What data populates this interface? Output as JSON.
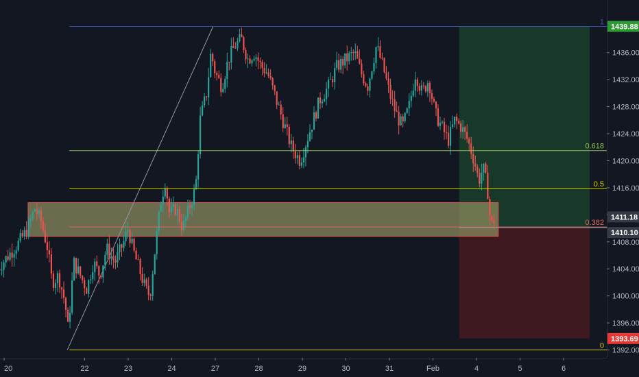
{
  "chart_data": {
    "type": "candlestick",
    "colors": {
      "background": "#131722",
      "up": "#26a69a",
      "down": "#ef5350",
      "axis_text": "#b2b5be",
      "profit_zone": "#1e5631",
      "loss_zone": "#5c1a1e",
      "support_zone": "#8a8a5c"
    },
    "y_axis": {
      "ylim": [
        1391,
        1441.5
      ],
      "ticks": [
        "1392.00",
        "1396.00",
        "1400.00",
        "1404.00",
        "1408.00",
        "1412.00",
        "1416.00",
        "1420.00",
        "1424.00",
        "1428.00",
        "1432.00",
        "1436.00"
      ],
      "tick_values": [
        1392,
        1396,
        1400,
        1404,
        1408,
        1412,
        1416,
        1420,
        1424,
        1428,
        1432,
        1436
      ]
    },
    "x_axis": {
      "labels": [
        {
          "text": "20",
          "x": 0.1
        },
        {
          "text": "22",
          "x": 2
        },
        {
          "text": "23",
          "x": 3
        },
        {
          "text": "24",
          "x": 4
        },
        {
          "text": "27",
          "x": 5
        },
        {
          "text": "28",
          "x": 6
        },
        {
          "text": "29",
          "x": 7
        },
        {
          "text": "30",
          "x": 8
        },
        {
          "text": "31",
          "x": 9
        },
        {
          "text": "Feb",
          "x": 10
        },
        {
          "text": "4",
          "x": 11
        },
        {
          "text": "5",
          "x": 12
        },
        {
          "text": "6",
          "x": 13
        }
      ]
    },
    "fib_levels": [
      {
        "label": "1",
        "value": 1439.88,
        "color": "#3f51b5"
      },
      {
        "label": "0.618",
        "value": 1421.5,
        "color": "#8bc34a"
      },
      {
        "label": "0.5",
        "value": 1415.9,
        "color": "#d4d400"
      },
      {
        "label": "0.382",
        "value": 1410.2,
        "color": "#d96a5a"
      },
      {
        "label": "0",
        "value": 1392.0,
        "color": "#d4d400"
      }
    ],
    "price_tags": [
      {
        "text": "1439.88",
        "value": 1439.88,
        "color": "#2e9a36"
      },
      {
        "text": "1411.18",
        "value": 1411.18,
        "color": "#363a45"
      },
      {
        "text": "1410.10",
        "value": 1410.1,
        "color": "#363a45"
      },
      {
        "text": "1393.69",
        "value": 1393.69,
        "color": "#e53935"
      }
    ],
    "support_zone": {
      "x0": 0.7,
      "x1": 11.5,
      "y_top": 1413.8,
      "y_bottom": 1408.8
    },
    "position": {
      "x0": 10.6,
      "x1": 13.6,
      "entry": 1410.1,
      "target": 1439.88,
      "stop": 1393.69
    },
    "trend_line": {
      "x0": 1.6,
      "y0": 1392.0,
      "x1": 4.95,
      "y1": 1439.88
    },
    "candle_path": [
      [
        0.0,
        1404
      ],
      [
        0.25,
        1406
      ],
      [
        0.5,
        1408
      ],
      [
        0.7,
        1410
      ],
      [
        0.85,
        1413
      ],
      [
        1.0,
        1411
      ],
      [
        1.15,
        1407
      ],
      [
        1.25,
        1402
      ],
      [
        1.4,
        1403
      ],
      [
        1.55,
        1399
      ],
      [
        1.62,
        1395
      ],
      [
        1.75,
        1405
      ],
      [
        1.9,
        1403
      ],
      [
        2.05,
        1401
      ],
      [
        2.2,
        1405
      ],
      [
        2.35,
        1403
      ],
      [
        2.5,
        1407
      ],
      [
        2.7,
        1405
      ],
      [
        2.9,
        1408
      ],
      [
        3.0,
        1410
      ],
      [
        3.1,
        1407
      ],
      [
        3.25,
        1404
      ],
      [
        3.4,
        1401
      ],
      [
        3.5,
        1400
      ],
      [
        3.6,
        1406
      ],
      [
        3.75,
        1414
      ],
      [
        3.85,
        1417
      ],
      [
        3.95,
        1412
      ],
      [
        4.1,
        1413
      ],
      [
        4.25,
        1410
      ],
      [
        4.4,
        1413
      ],
      [
        4.55,
        1416
      ],
      [
        4.65,
        1426
      ],
      [
        4.8,
        1430
      ],
      [
        4.9,
        1436
      ],
      [
        5.0,
        1433
      ],
      [
        5.15,
        1431
      ],
      [
        5.3,
        1435
      ],
      [
        5.45,
        1437
      ],
      [
        5.6,
        1438
      ],
      [
        5.75,
        1435
      ],
      [
        5.9,
        1436
      ],
      [
        6.05,
        1434
      ],
      [
        6.2,
        1433
      ],
      [
        6.35,
        1430
      ],
      [
        6.55,
        1426
      ],
      [
        6.75,
        1422
      ],
      [
        6.95,
        1420
      ],
      [
        7.1,
        1423
      ],
      [
        7.25,
        1426
      ],
      [
        7.4,
        1429
      ],
      [
        7.6,
        1431
      ],
      [
        7.8,
        1434
      ],
      [
        8.0,
        1435
      ],
      [
        8.2,
        1436
      ],
      [
        8.35,
        1433
      ],
      [
        8.5,
        1431
      ],
      [
        8.7,
        1437
      ],
      [
        8.85,
        1434
      ],
      [
        9.0,
        1430
      ],
      [
        9.15,
        1427
      ],
      [
        9.3,
        1425
      ],
      [
        9.45,
        1428
      ],
      [
        9.6,
        1433
      ],
      [
        9.75,
        1430
      ],
      [
        9.9,
        1432
      ],
      [
        10.05,
        1427
      ],
      [
        10.2,
        1425
      ],
      [
        10.35,
        1423
      ],
      [
        10.5,
        1426
      ],
      [
        10.65,
        1425
      ],
      [
        10.8,
        1423
      ],
      [
        10.95,
        1420
      ],
      [
        11.05,
        1417
      ],
      [
        11.15,
        1419
      ],
      [
        11.25,
        1416
      ],
      [
        11.3,
        1412
      ],
      [
        11.36,
        1410.5
      ],
      [
        11.4,
        1411.18
      ]
    ]
  }
}
